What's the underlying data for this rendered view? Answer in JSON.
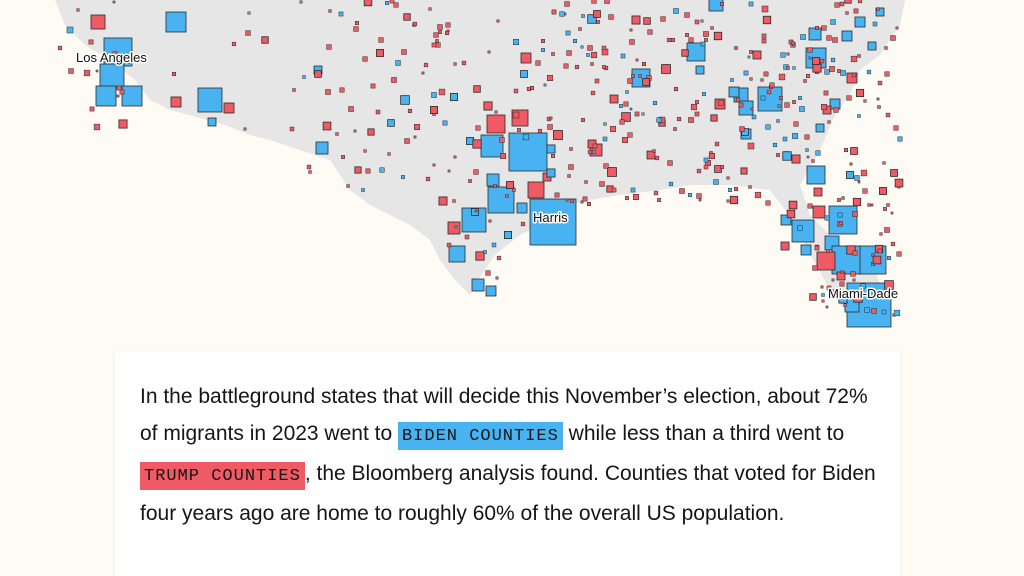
{
  "map": {
    "land_color": "#e6e6e6",
    "background_color": "#fdfbf4",
    "colors": {
      "biden": "#48b3f0",
      "trump": "#ef5a64",
      "outline": "#2b2b2b"
    },
    "labels": {
      "los_angeles": "Los Angeles",
      "harris": "Harris",
      "miami_dade": "Miami-Dade"
    }
  },
  "story": {
    "part1": "In the battleground states that will decide this November’s election, about 72% of migrants in 2023 went to ",
    "biden_chip": "BIDEN COUNTIES",
    "part2": " while less than a third went to ",
    "trump_chip": "TRUMP COUNTIES",
    "part3": ", the Bloomberg analysis found. Counties that voted for Biden four years ago are home to roughly 60% of the overall US population."
  }
}
